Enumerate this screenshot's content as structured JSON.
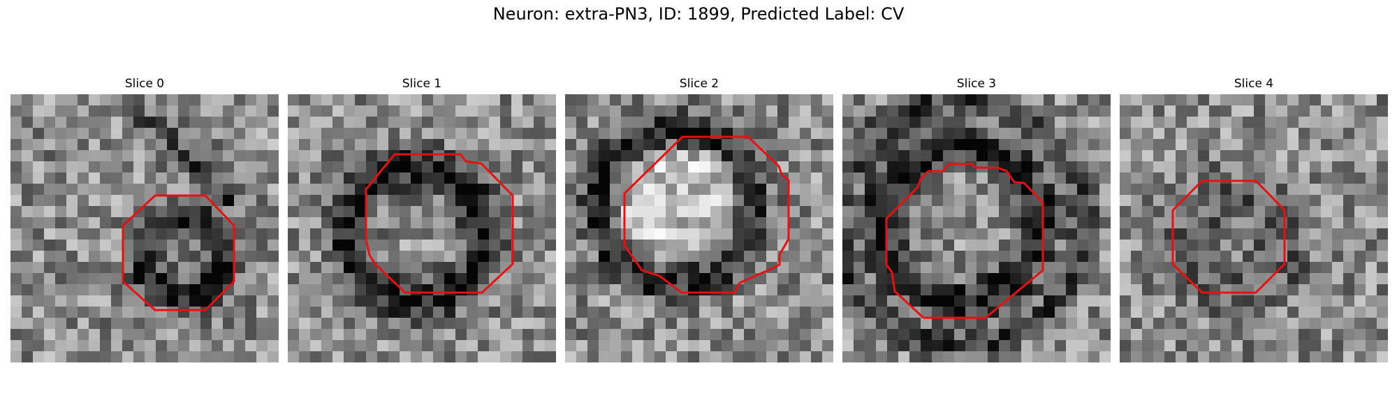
{
  "figure": {
    "title": "Neuron: extra-PN3, ID: 1899, Predicted Label: CV"
  },
  "panels": [
    {
      "title": "Slice 0"
    },
    {
      "title": "Slice 1"
    },
    {
      "title": "Slice 2"
    },
    {
      "title": "Slice 3"
    },
    {
      "title": "Slice 4"
    }
  ],
  "style": {
    "contour_color": "#e81010",
    "colormap": "grayscale"
  }
}
